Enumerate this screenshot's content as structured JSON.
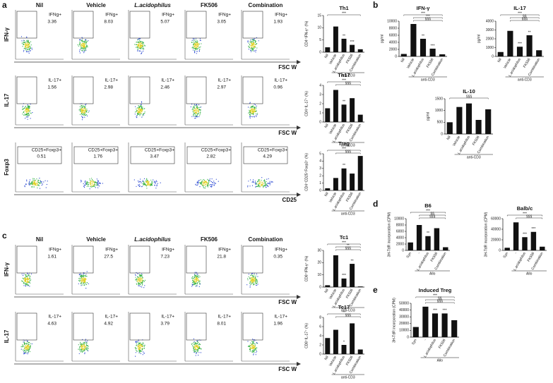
{
  "panel_labels": [
    "a",
    "b",
    "c",
    "d",
    "e"
  ],
  "flow_a": {
    "columns": [
      "Nil",
      "Vehicle",
      "L.acidophilus",
      "FK506",
      "Combination"
    ],
    "rows": [
      {
        "marker": "IFN-γ",
        "axis": "FSC W",
        "gate": "IFNg+",
        "percents": [
          3.36,
          8.03,
          5.07,
          3.05,
          1.93
        ]
      },
      {
        "marker": "IL-17",
        "axis": "FSC W",
        "gate": "IL-17+",
        "percents": [
          1.56,
          2.98,
          2.46,
          2.97,
          0.96
        ]
      },
      {
        "marker": "Foxp3",
        "axis": "CD25",
        "gate": "CD25+Foxp3+",
        "percents": [
          0.51,
          1.76,
          3.47,
          2.82,
          4.29
        ]
      }
    ]
  },
  "flow_c": {
    "columns": [
      "Nil",
      "Vehicle",
      "L.acidophilus",
      "FK506",
      "Combination"
    ],
    "rows": [
      {
        "marker": "IFN-γ",
        "axis": "FSC W",
        "gate": "IFNg+",
        "percents": [
          1.61,
          27.5,
          7.23,
          21.8,
          0.35
        ]
      },
      {
        "marker": "IL-17",
        "axis": "FSC W",
        "gate": "IL-17+",
        "percents": [
          4.63,
          4.92,
          3.79,
          8.01,
          1.96
        ]
      }
    ]
  },
  "bars": {
    "th1": {
      "type": "bar",
      "title": "Th1",
      "y_label": "CD4⁺IFN-γ⁺ (%)",
      "group": "anti-CD3",
      "categories": [
        "Nil",
        "Vehicle",
        "L.acidophilus",
        "FK506",
        "Combination"
      ],
      "values": [
        2,
        10.5,
        5.5,
        3,
        1.2
      ],
      "stars": [
        null,
        null,
        "**",
        "***",
        null
      ],
      "brackets": [
        "***"
      ],
      "color": "#111111",
      "ylim": [
        0,
        15
      ],
      "yticks": [
        0,
        5,
        10,
        15
      ]
    },
    "th17": {
      "type": "bar",
      "title": "Th17",
      "y_label": "CD4⁺IL-17⁺ (%)",
      "group": "anti-CD3",
      "categories": [
        "Nil",
        "Vehicle",
        "L.acidophilus",
        "FK506",
        "Combination"
      ],
      "values": [
        1.5,
        3.5,
        1.9,
        2.6,
        0.8
      ],
      "stars": [
        null,
        null,
        "**",
        null,
        null
      ],
      "brackets": [
        "***",
        "§§§"
      ],
      "color": "#111111",
      "ylim": [
        0,
        4
      ],
      "yticks": [
        0,
        1,
        2,
        3,
        4
      ]
    },
    "treg": {
      "type": "bar",
      "title": "Treg",
      "y_label": "CD4⁺CD25⁺Foxp3⁺ (%)",
      "group": "anti-CD3",
      "categories": [
        "Nil",
        "Vehicle",
        "L.acidophilus",
        "FK506",
        "Combination"
      ],
      "values": [
        0.3,
        1.7,
        3,
        2.3,
        4.7
      ],
      "stars": [
        null,
        null,
        "**",
        null,
        null
      ],
      "brackets": [
        "***",
        "§§§"
      ],
      "color": "#111111",
      "ylim": [
        0,
        5
      ],
      "yticks": [
        0,
        1,
        2,
        3,
        4,
        5
      ]
    },
    "tc1": {
      "type": "bar",
      "title": "Tc1",
      "y_label": "CD8⁺IFN-γ⁺ (%)",
      "group": "anti-CD3",
      "categories": [
        "Nil",
        "Vehicle",
        "L.acidophilus",
        "FK506",
        "Combination"
      ],
      "values": [
        1.5,
        26,
        7,
        19,
        0.5
      ],
      "stars": [
        null,
        null,
        "***",
        "**",
        null
      ],
      "brackets": [
        "***",
        "**",
        "§§§"
      ],
      "color": "#111111",
      "ylim": [
        0,
        30
      ],
      "yticks": [
        0,
        10,
        20,
        30
      ]
    },
    "tc17": {
      "type": "bar",
      "title": "Tc17",
      "y_label": "CD8⁺IL-17⁺ (%)",
      "group": "anti-CD3",
      "categories": [
        "Nil",
        "Vehicle",
        "L.acidophilus",
        "FK506",
        "Combination"
      ],
      "values": [
        3.5,
        5.3,
        2,
        6.7,
        1
      ],
      "stars": [
        null,
        null,
        "*",
        null,
        null
      ],
      "brackets": [
        "**",
        "§§§"
      ],
      "color": "#111111",
      "ylim": [
        0,
        8
      ],
      "yticks": [
        0,
        2,
        4,
        6,
        8
      ]
    },
    "ifng": {
      "type": "bar",
      "title": "IFN-γ",
      "y_label": "pg/ml",
      "group": "anti-CD3",
      "categories": [
        "Nil",
        "Vehicle",
        "L.acidophilus",
        "FK506",
        "Combination"
      ],
      "values": [
        700,
        9200,
        5000,
        2200,
        600
      ],
      "stars": [
        null,
        null,
        "**",
        "***",
        null
      ],
      "brackets": [
        "***",
        "***",
        "§§§"
      ],
      "color": "#111111",
      "ylim": [
        0,
        10000
      ],
      "yticks": [
        0,
        2000,
        4000,
        6000,
        8000,
        10000
      ]
    },
    "il17": {
      "type": "bar",
      "title": "IL-17",
      "y_label": "pg/ml",
      "group": "anti-CD3",
      "categories": [
        "Nil",
        "Vehicle",
        "L.acidophilus",
        "FK506",
        "Combination"
      ],
      "values": [
        500,
        2900,
        1100,
        2400,
        700
      ],
      "stars": [
        null,
        null,
        "***",
        "**",
        null
      ],
      "brackets": [
        "***",
        "§§",
        "§§§"
      ],
      "color": "#111111",
      "ylim": [
        0,
        4000
      ],
      "yticks": [
        0,
        1000,
        2000,
        3000,
        4000
      ]
    },
    "il10": {
      "type": "bar",
      "title": "IL-10",
      "y_label": "pg/ml",
      "group": "anti-CD3",
      "categories": [
        "Nil",
        "Vehicle",
        "L.acidophilus",
        "FK506",
        "Combination"
      ],
      "values": [
        500,
        1150,
        1300,
        600,
        1050
      ],
      "stars": [
        null,
        null,
        null,
        null,
        null
      ],
      "brackets": [
        "§§§"
      ],
      "color": "#111111",
      "ylim": [
        0,
        1500
      ],
      "yticks": [
        0,
        500,
        1000,
        1500
      ]
    },
    "b6": {
      "type": "bar",
      "title": "B6",
      "y_label": "3H-TdR incorporation (CPM)",
      "group": "Allo",
      "categories": [
        "Syn",
        "-",
        "L.acidophilus",
        "FK506",
        "Combination"
      ],
      "values": [
        2500,
        8000,
        4500,
        7000,
        1000
      ],
      "stars": [
        null,
        null,
        "**",
        null,
        null
      ],
      "brackets": [
        "***",
        "§§",
        "§§§"
      ],
      "color": "#111111",
      "ylim": [
        0,
        10000
      ],
      "yticks": [
        0,
        2000,
        4000,
        6000,
        8000,
        10000
      ]
    },
    "balbc": {
      "type": "bar",
      "title": "Balb/c",
      "y_label": "3H-TdR incorporation (CPM)",
      "group": "Allo",
      "categories": [
        "Syn",
        "-",
        "L.acidophilus",
        "FK506",
        "Combination"
      ],
      "values": [
        5000,
        53000,
        25000,
        35000,
        7000
      ],
      "stars": [
        null,
        null,
        "***",
        "***",
        null
      ],
      "brackets": [
        "***",
        "§§§"
      ],
      "color": "#111111",
      "ylim": [
        0,
        60000
      ],
      "yticks": [
        0,
        20000,
        40000,
        60000
      ]
    },
    "itreg": {
      "type": "bar",
      "title": "Induced Treg",
      "y_label": "3H-TdR incorporation (CPM)",
      "group": "Allo",
      "categories": [
        "Syn",
        "-",
        "L.acidophilus",
        "FK506",
        "Combination"
      ],
      "values": [
        15000,
        45000,
        35000,
        35000,
        25000
      ],
      "stars": [
        null,
        null,
        "***",
        "***",
        null
      ],
      "brackets": [
        "***",
        "§§",
        "§§§"
      ],
      "color": "#111111",
      "ylim": [
        0,
        50000
      ],
      "yticks": [
        0,
        10000,
        20000,
        30000,
        40000,
        50000
      ]
    }
  }
}
